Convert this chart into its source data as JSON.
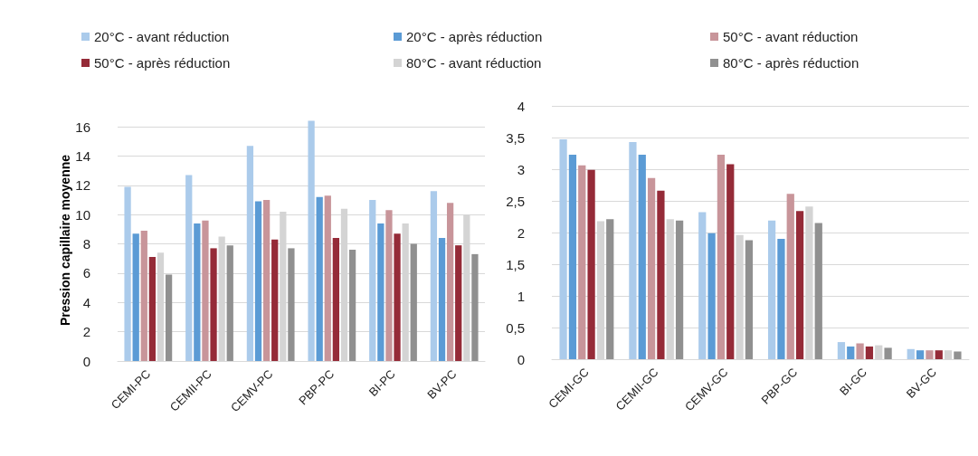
{
  "chart_data": [
    {
      "type": "bar",
      "ylabel": "Pression capillaire moyenne",
      "categories": [
        "CEMI-PC",
        "CEMII-PC",
        "CEMV-PC",
        "PBP-PC",
        "BI-PC",
        "BV-PC"
      ],
      "series": [
        {
          "name": "20°C - avant réduction",
          "color": "#abcbeb",
          "values": [
            11.9,
            12.7,
            14.7,
            16.4,
            11.0,
            11.6
          ]
        },
        {
          "name": "20°C - après réduction",
          "color": "#5b9bd5",
          "values": [
            8.7,
            9.4,
            10.9,
            11.2,
            9.4,
            8.4
          ]
        },
        {
          "name": "50°C - avant réduction",
          "color": "#c8959a",
          "values": [
            8.9,
            9.6,
            11.0,
            11.3,
            10.3,
            10.8
          ]
        },
        {
          "name": "50°C - après réduction",
          "color": "#952b38",
          "values": [
            7.1,
            7.7,
            8.3,
            8.4,
            8.7,
            7.9
          ]
        },
        {
          "name": "80°C - avant réduction",
          "color": "#d4d4d4",
          "values": [
            7.4,
            8.5,
            10.2,
            10.4,
            9.4,
            10.0
          ]
        },
        {
          "name": "80°C - après réduction",
          "color": "#909090",
          "values": [
            5.9,
            7.9,
            7.7,
            7.6,
            8.0,
            7.3
          ]
        }
      ],
      "ylim": [
        0,
        16.5
      ],
      "yticks": [
        0,
        2,
        4,
        6,
        8,
        10,
        12,
        14,
        16
      ],
      "grid": "y",
      "legend": "top"
    },
    {
      "type": "bar",
      "categories": [
        "CEMI-GC",
        "CEMII-GC",
        "CEMV-GC",
        "PBP-GC",
        "BI-GC",
        "BV-GC"
      ],
      "series": [
        {
          "color": "#abcbeb",
          "values": [
            3.47,
            3.43,
            2.32,
            2.19,
            0.27,
            0.16
          ]
        },
        {
          "color": "#5b9bd5",
          "values": [
            3.23,
            3.23,
            1.99,
            1.9,
            0.2,
            0.14
          ]
        },
        {
          "color": "#c8959a",
          "values": [
            3.06,
            2.86,
            3.23,
            2.61,
            0.25,
            0.14
          ]
        },
        {
          "color": "#952b38",
          "values": [
            2.99,
            2.66,
            3.08,
            2.34,
            0.2,
            0.14
          ]
        },
        {
          "color": "#d4d4d4",
          "values": [
            2.18,
            2.21,
            1.96,
            2.41,
            0.22,
            0.14
          ]
        },
        {
          "color": "#909090",
          "values": [
            2.21,
            2.19,
            1.88,
            2.15,
            0.18,
            0.12
          ]
        }
      ],
      "ylim": [
        0,
        4
      ],
      "yticks": [
        0,
        {
          "value": 0.5,
          "label": "0,5"
        },
        1,
        {
          "value": 1.5,
          "label": "1,5"
        },
        2,
        {
          "value": 2.5,
          "label": "2,5"
        },
        3,
        {
          "value": 3.5,
          "label": "3,5"
        },
        4
      ],
      "grid": "y"
    }
  ]
}
